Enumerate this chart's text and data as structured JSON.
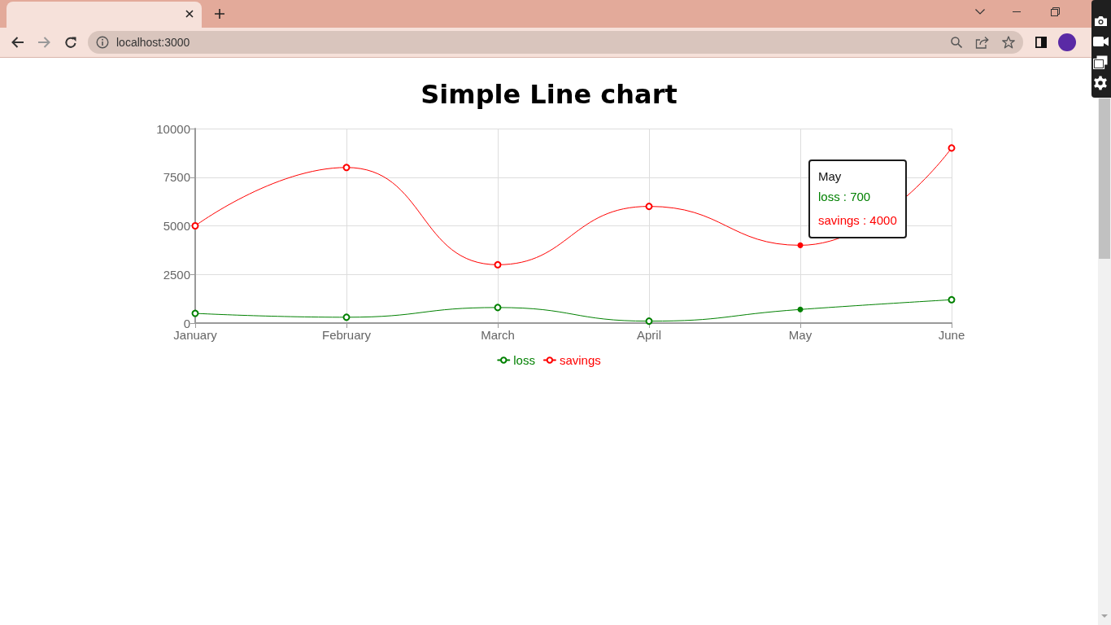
{
  "chart_data": {
    "type": "line",
    "title": "Simple Line chart",
    "categories": [
      "January",
      "February",
      "March",
      "April",
      "May",
      "June"
    ],
    "series": [
      {
        "name": "loss",
        "color": "#008000",
        "values": [
          500,
          300,
          800,
          100,
          700,
          1200
        ]
      },
      {
        "name": "savings",
        "color": "#ff0000",
        "values": [
          5000,
          8000,
          3000,
          6000,
          4000,
          9000
        ]
      }
    ],
    "ylim": [
      0,
      10000
    ],
    "yticks": [
      0,
      2500,
      5000,
      7500,
      10000
    ],
    "grid": true,
    "legend": "bottom",
    "marker": "circle",
    "line_style": "solid",
    "annotations": [
      "localhost:3000",
      "May",
      "loss : 700",
      {
        "text": "savings : 4000",
        "x": "May",
        "y": 4000
      }
    ]
  }
}
